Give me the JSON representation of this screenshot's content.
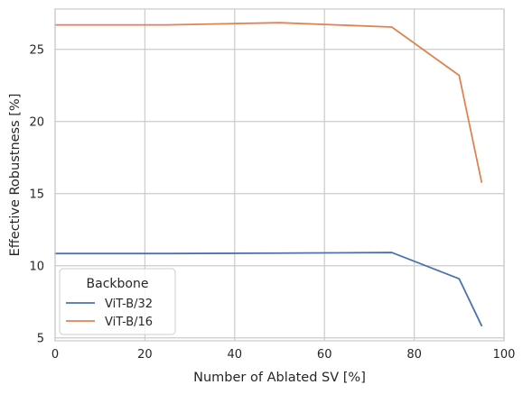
{
  "chart_data": {
    "type": "line",
    "title": "",
    "xlabel": "Number of Ablated SV [%]",
    "ylabel": "Effective Robustness [%]",
    "xlim": [
      0,
      100
    ],
    "ylim": [
      4.8,
      27.8
    ],
    "xticks": [
      0,
      20,
      40,
      60,
      80,
      100
    ],
    "yticks": [
      5,
      10,
      15,
      20,
      25
    ],
    "grid": true,
    "legend": {
      "title": "Backbone",
      "position": "lower-left"
    },
    "series": [
      {
        "name": "ViT-B/32",
        "color": "#4c72b0",
        "x": [
          0,
          25,
          50,
          75,
          90,
          95
        ],
        "y": [
          10.85,
          10.85,
          10.88,
          10.92,
          9.1,
          5.85
        ]
      },
      {
        "name": "ViT-B/16",
        "color": "#dd8452",
        "x": [
          0,
          25,
          50,
          75,
          90,
          95
        ],
        "y": [
          26.7,
          26.7,
          26.85,
          26.55,
          23.2,
          15.8
        ]
      }
    ]
  }
}
